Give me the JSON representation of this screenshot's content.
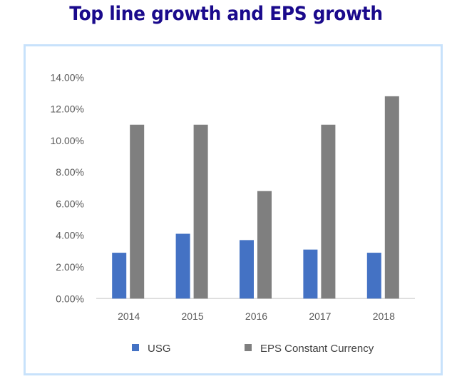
{
  "chart_data": {
    "type": "bar",
    "title": "Top line growth and EPS growth",
    "xlabel": "",
    "ylabel": "",
    "categories": [
      "2014",
      "2015",
      "2016",
      "2017",
      "2018"
    ],
    "series": [
      {
        "name": "USG",
        "color": "#4472c4",
        "values": [
          2.9,
          4.1,
          3.7,
          3.1,
          2.9
        ]
      },
      {
        "name": "EPS Constant Currency",
        "color": "#7f7f7f",
        "values": [
          11.0,
          11.0,
          6.8,
          11.0,
          12.8
        ]
      }
    ],
    "ylim": [
      0,
      14
    ],
    "yticks": [
      "0.00%",
      "2.00%",
      "4.00%",
      "6.00%",
      "8.00%",
      "10.00%",
      "12.00%",
      "14.00%"
    ],
    "grid": false,
    "legend": "bottom"
  }
}
